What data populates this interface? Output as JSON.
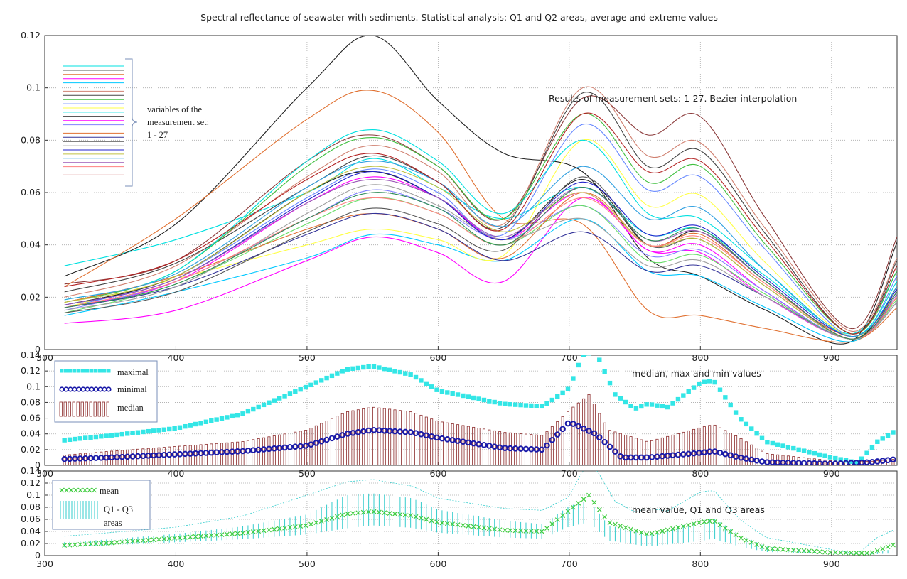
{
  "figure_title": "Spectral reflectance of seawater with sediments. Statistical analysis: Q1 and Q2 areas, average and extreme values",
  "chart_data": [
    {
      "type": "line",
      "annotation": "Results of measurement sets: 1-27. Bezier interpolation",
      "legend_note": [
        "variables of the",
        "measurement set:",
        "1 - 27"
      ],
      "xlim": [
        300,
        950
      ],
      "ylim": [
        0,
        0.12
      ],
      "xticks": [
        300,
        400,
        500,
        600,
        700,
        800,
        900
      ],
      "yticks": [
        0,
        0.02,
        0.04,
        0.06,
        0.08,
        0.1,
        0.12
      ],
      "ytick_labels": [
        "0",
        "0.02",
        "0.04",
        "0.06",
        "0.08",
        "0.1",
        "0.12"
      ],
      "grid": true,
      "x": [
        315,
        400,
        500,
        550,
        600,
        650,
        710,
        760,
        800,
        850,
        915,
        950
      ],
      "series": [
        {
          "color": "#00e0e0",
          "values": [
            0.032,
            0.042,
            0.06,
            0.073,
            0.062,
            0.05,
            0.062,
            0.044,
            0.046,
            0.028,
            0.006,
            0.03
          ]
        },
        {
          "color": "#222222",
          "values": [
            0.028,
            0.048,
            0.1,
            0.12,
            0.095,
            0.075,
            0.068,
            0.035,
            0.028,
            0.015,
            0.003,
            0.041
          ]
        },
        {
          "color": "#e07030",
          "values": [
            0.024,
            0.05,
            0.088,
            0.099,
            0.083,
            0.05,
            0.048,
            0.015,
            0.013,
            0.008,
            0.003,
            0.016
          ]
        },
        {
          "color": "#ff00ff",
          "values": [
            0.01,
            0.015,
            0.034,
            0.043,
            0.037,
            0.026,
            0.058,
            0.038,
            0.037,
            0.02,
            0.004,
            0.018
          ]
        },
        {
          "color": "#00c8ff",
          "values": [
            0.013,
            0.022,
            0.035,
            0.044,
            0.04,
            0.034,
            0.05,
            0.03,
            0.028,
            0.016,
            0.003,
            0.022
          ]
        },
        {
          "color": "#8b3a3a",
          "values": [
            0.025,
            0.034,
            0.072,
            0.082,
            0.07,
            0.05,
            0.096,
            0.082,
            0.089,
            0.05,
            0.008,
            0.043
          ]
        },
        {
          "color": "#d08070",
          "values": [
            0.02,
            0.032,
            0.066,
            0.078,
            0.068,
            0.048,
            0.1,
            0.074,
            0.079,
            0.046,
            0.007,
            0.035
          ]
        },
        {
          "color": "#444444",
          "values": [
            0.022,
            0.033,
            0.062,
            0.074,
            0.064,
            0.047,
            0.098,
            0.07,
            0.076,
            0.044,
            0.006,
            0.034
          ]
        },
        {
          "color": "#40c040",
          "values": [
            0.018,
            0.03,
            0.07,
            0.081,
            0.07,
            0.05,
            0.09,
            0.064,
            0.07,
            0.04,
            0.006,
            0.03
          ]
        },
        {
          "color": "#6688ff",
          "values": [
            0.016,
            0.028,
            0.058,
            0.069,
            0.06,
            0.044,
            0.086,
            0.061,
            0.066,
            0.038,
            0.005,
            0.028
          ]
        },
        {
          "color": "#ffff44",
          "values": [
            0.016,
            0.027,
            0.04,
            0.046,
            0.042,
            0.036,
            0.08,
            0.055,
            0.059,
            0.033,
            0.005,
            0.024
          ]
        },
        {
          "color": "#00e0e0",
          "values": [
            0.019,
            0.03,
            0.072,
            0.084,
            0.072,
            0.052,
            0.08,
            0.052,
            0.05,
            0.03,
            0.005,
            0.026
          ]
        },
        {
          "color": "#222222",
          "values": [
            0.017,
            0.028,
            0.06,
            0.068,
            0.058,
            0.042,
            0.065,
            0.04,
            0.045,
            0.026,
            0.004,
            0.024
          ]
        },
        {
          "color": "#ff00ff",
          "values": [
            0.016,
            0.026,
            0.056,
            0.066,
            0.058,
            0.042,
            0.06,
            0.038,
            0.04,
            0.022,
            0.004,
            0.02
          ]
        },
        {
          "color": "#8080ff",
          "values": [
            0.015,
            0.026,
            0.05,
            0.061,
            0.054,
            0.042,
            0.055,
            0.036,
            0.038,
            0.022,
            0.004,
            0.02
          ]
        },
        {
          "color": "#66dd66",
          "values": [
            0.014,
            0.025,
            0.048,
            0.058,
            0.052,
            0.04,
            0.055,
            0.034,
            0.036,
            0.021,
            0.004,
            0.019
          ]
        },
        {
          "color": "#e07030",
          "values": [
            0.018,
            0.028,
            0.046,
            0.052,
            0.046,
            0.035,
            0.06,
            0.04,
            0.044,
            0.025,
            0.005,
            0.022
          ]
        },
        {
          "color": "#333399",
          "values": [
            0.016,
            0.024,
            0.044,
            0.052,
            0.046,
            0.034,
            0.045,
            0.03,
            0.032,
            0.02,
            0.004,
            0.018
          ]
        },
        {
          "color": "#555555",
          "values": [
            0.014,
            0.022,
            0.045,
            0.054,
            0.048,
            0.038,
            0.066,
            0.04,
            0.042,
            0.024,
            0.004,
            0.02
          ]
        },
        {
          "color": "#a0a0a0",
          "values": [
            0.015,
            0.024,
            0.052,
            0.063,
            0.055,
            0.042,
            0.05,
            0.032,
            0.034,
            0.02,
            0.004,
            0.018
          ]
        },
        {
          "color": "#2222cc",
          "values": [
            0.017,
            0.027,
            0.057,
            0.068,
            0.058,
            0.042,
            0.064,
            0.044,
            0.047,
            0.027,
            0.005,
            0.023
          ]
        },
        {
          "color": "#c0c040",
          "values": [
            0.018,
            0.028,
            0.06,
            0.07,
            0.062,
            0.045,
            0.06,
            0.04,
            0.042,
            0.024,
            0.004,
            0.02
          ]
        },
        {
          "color": "#30a0e0",
          "values": [
            0.019,
            0.029,
            0.062,
            0.072,
            0.064,
            0.047,
            0.07,
            0.05,
            0.054,
            0.03,
            0.005,
            0.024
          ]
        },
        {
          "color": "#9b59b6",
          "values": [
            0.017,
            0.027,
            0.056,
            0.065,
            0.058,
            0.043,
            0.062,
            0.042,
            0.045,
            0.026,
            0.004,
            0.021
          ]
        },
        {
          "color": "#ff7f7f",
          "values": [
            0.016,
            0.026,
            0.05,
            0.058,
            0.052,
            0.04,
            0.058,
            0.04,
            0.043,
            0.025,
            0.004,
            0.02
          ]
        },
        {
          "color": "#2e8b57",
          "values": [
            0.016,
            0.025,
            0.05,
            0.06,
            0.054,
            0.04,
            0.062,
            0.042,
            0.046,
            0.026,
            0.004,
            0.022
          ]
        },
        {
          "color": "#b22222",
          "values": [
            0.024,
            0.034,
            0.065,
            0.075,
            0.064,
            0.046,
            0.09,
            0.068,
            0.072,
            0.042,
            0.006,
            0.032
          ]
        }
      ]
    },
    {
      "type": "scatter",
      "annotation": "median, max and min values",
      "xlim": [
        300,
        950
      ],
      "ylim": [
        0,
        0.14
      ],
      "xticks": [
        300,
        400,
        500,
        600,
        700,
        800,
        900
      ],
      "yticks": [
        0,
        0.02,
        0.04,
        0.06,
        0.08,
        0.1,
        0.12,
        0.14
      ],
      "ytick_labels": [
        "0",
        "0.02",
        "0.04",
        "0.06",
        "0.08",
        "0.1",
        "0.12",
        "0.14"
      ],
      "grid": true,
      "legend": {
        "maximal": "maximal",
        "minimal": "minimal",
        "median": "median"
      },
      "maximal": {
        "x": [
          315,
          350,
          400,
          450,
          500,
          530,
          550,
          580,
          600,
          650,
          680,
          700,
          710,
          720,
          735,
          750,
          760,
          775,
          800,
          810,
          830,
          850,
          900,
          920,
          935,
          950
        ],
        "y": [
          0.032,
          0.038,
          0.047,
          0.065,
          0.1,
          0.122,
          0.126,
          0.115,
          0.095,
          0.078,
          0.075,
          0.098,
          0.14,
          0.145,
          0.09,
          0.072,
          0.078,
          0.074,
          0.105,
          0.108,
          0.06,
          0.03,
          0.01,
          0.003,
          0.03,
          0.045
        ]
      },
      "minimal": {
        "x": [
          315,
          350,
          400,
          450,
          500,
          530,
          550,
          580,
          600,
          650,
          680,
          700,
          720,
          740,
          760,
          800,
          810,
          830,
          850,
          900,
          930,
          950
        ],
        "y": [
          0.008,
          0.01,
          0.014,
          0.018,
          0.025,
          0.04,
          0.045,
          0.042,
          0.035,
          0.022,
          0.02,
          0.055,
          0.04,
          0.01,
          0.01,
          0.016,
          0.018,
          0.01,
          0.004,
          0.002,
          0.004,
          0.008
        ]
      },
      "median": {
        "x": [
          315,
          350,
          400,
          450,
          500,
          530,
          550,
          580,
          600,
          650,
          680,
          700,
          715,
          730,
          760,
          800,
          810,
          830,
          850,
          900,
          930,
          950
        ],
        "y": [
          0.013,
          0.018,
          0.024,
          0.03,
          0.045,
          0.068,
          0.074,
          0.068,
          0.056,
          0.042,
          0.038,
          0.07,
          0.09,
          0.045,
          0.03,
          0.048,
          0.052,
          0.035,
          0.015,
          0.006,
          0.005,
          0.008
        ]
      }
    },
    {
      "type": "scatter",
      "annotation": "mean value, Q1 and Q3 areas",
      "xlim": [
        300,
        950
      ],
      "ylim": [
        0,
        0.14
      ],
      "xticks": [
        300,
        400,
        500,
        600,
        700,
        800,
        900
      ],
      "yticks": [
        0,
        0.02,
        0.04,
        0.06,
        0.08,
        0.1,
        0.12,
        0.14
      ],
      "ytick_labels": [
        "0",
        "0.02",
        "0.04",
        "0.06",
        "0.08",
        "0.1",
        "0.12",
        "0.14"
      ],
      "grid": true,
      "legend": {
        "mean": "mean",
        "q_line1": "Q1 - Q3",
        "q_line2": "areas"
      },
      "mean": {
        "x": [
          315,
          350,
          400,
          450,
          500,
          530,
          550,
          580,
          600,
          650,
          680,
          700,
          715,
          730,
          760,
          800,
          810,
          830,
          850,
          900,
          930,
          950
        ],
        "y": [
          0.017,
          0.021,
          0.029,
          0.037,
          0.05,
          0.069,
          0.073,
          0.066,
          0.055,
          0.042,
          0.04,
          0.075,
          0.1,
          0.055,
          0.035,
          0.055,
          0.058,
          0.03,
          0.012,
          0.005,
          0.004,
          0.02
        ]
      },
      "q3": {
        "x": [
          315,
          350,
          400,
          450,
          500,
          530,
          550,
          580,
          600,
          650,
          680,
          700,
          715,
          730,
          760,
          800,
          810,
          830,
          850,
          900,
          930,
          950
        ],
        "y": [
          0.022,
          0.027,
          0.036,
          0.048,
          0.068,
          0.1,
          0.103,
          0.095,
          0.076,
          0.058,
          0.052,
          0.082,
          0.092,
          0.05,
          0.035,
          0.058,
          0.062,
          0.035,
          0.015,
          0.006,
          0.004,
          0.012
        ]
      },
      "q1": {
        "x": [
          315,
          350,
          400,
          450,
          500,
          530,
          550,
          580,
          600,
          650,
          680,
          700,
          715,
          730,
          760,
          800,
          810,
          830,
          850,
          900,
          930,
          950
        ],
        "y": [
          0.014,
          0.017,
          0.022,
          0.027,
          0.035,
          0.045,
          0.05,
          0.046,
          0.038,
          0.03,
          0.028,
          0.048,
          0.055,
          0.025,
          0.015,
          0.024,
          0.028,
          0.015,
          0.006,
          0.003,
          0.002,
          0.004
        ]
      }
    }
  ]
}
